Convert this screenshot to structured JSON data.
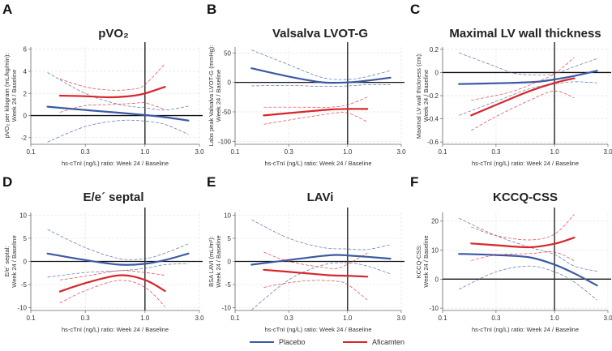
{
  "legend": [
    {
      "name": "Placebo",
      "color": "#3b5aa3"
    },
    {
      "name": "Aficamten",
      "color": "#d8262c"
    }
  ],
  "chart_data": [
    {
      "panel": "A",
      "type": "line",
      "title": "pVO₂",
      "ylabel": [
        "pVO₂ per kilogram (mL/kg/min):",
        "Week 24 / Baseline"
      ],
      "xlabel": "hs-cTnI (ng/L) ratio: Week 24 / Baseline",
      "xscale": "log",
      "xlim": [
        0.1,
        3.0
      ],
      "xticks": [
        "0.1",
        "0.3",
        "1.0",
        "3.0"
      ],
      "ylim": [
        -2.6,
        6.2
      ],
      "yticks": [
        -2,
        0,
        2,
        4,
        6
      ],
      "reference_lines": {
        "x": 1.0,
        "y": 0
      },
      "grid": true,
      "series": [
        {
          "name": "Placebo",
          "estimate": [
            [
              0.14,
              0.8
            ],
            [
              0.3,
              0.5
            ],
            [
              0.6,
              0.25
            ],
            [
              1,
              0.05
            ],
            [
              1.5,
              -0.15
            ],
            [
              2.4,
              -0.45
            ]
          ],
          "upper": [
            [
              0.14,
              3.9
            ],
            [
              0.3,
              2.0
            ],
            [
              0.6,
              1.0
            ],
            [
              1,
              0.7
            ],
            [
              1.5,
              0.5
            ],
            [
              2.4,
              0.85
            ]
          ],
          "lower": [
            [
              0.14,
              -2.4
            ],
            [
              0.3,
              -1.0
            ],
            [
              0.6,
              -0.45
            ],
            [
              1,
              -0.5
            ],
            [
              1.5,
              -0.8
            ],
            [
              2.4,
              -1.7
            ]
          ]
        },
        {
          "name": "Aficamten",
          "estimate": [
            [
              0.18,
              1.8
            ],
            [
              0.3,
              1.75
            ],
            [
              0.5,
              1.65
            ],
            [
              0.8,
              1.8
            ],
            [
              1,
              2.0
            ],
            [
              1.5,
              2.6
            ]
          ],
          "upper": [
            [
              0.18,
              3.3
            ],
            [
              0.3,
              2.6
            ],
            [
              0.5,
              2.3
            ],
            [
              0.8,
              2.4
            ],
            [
              1,
              2.8
            ],
            [
              1.5,
              4.7
            ]
          ],
          "lower": [
            [
              0.18,
              0.3
            ],
            [
              0.3,
              0.9
            ],
            [
              0.5,
              1.0
            ],
            [
              0.8,
              1.1
            ],
            [
              1,
              1.15
            ],
            [
              1.5,
              0.55
            ]
          ]
        }
      ]
    },
    {
      "panel": "B",
      "type": "line",
      "title": "Valsalva LVOT-G",
      "ylabel": [
        "Labs peak Valsalva LVOT-G (mmHg):",
        "Week 24 / Baseline"
      ],
      "xlabel": "hs-cTnI (ng/L) ratio: Week 24 / Baseline",
      "xscale": "log",
      "xlim": [
        0.1,
        3.0
      ],
      "xticks": [
        "0.1",
        "0.3",
        "1.0",
        "3.0"
      ],
      "ylim": [
        -105,
        60
      ],
      "yticks": [
        -100,
        -50,
        0,
        50
      ],
      "reference_lines": {
        "x": 1.0,
        "y": 0
      },
      "grid": true,
      "series": [
        {
          "name": "Placebo",
          "estimate": [
            [
              0.14,
              24
            ],
            [
              0.3,
              10
            ],
            [
              0.6,
              0
            ],
            [
              1,
              0
            ],
            [
              1.5,
              3
            ],
            [
              2.4,
              8
            ]
          ],
          "upper": [
            [
              0.14,
              55
            ],
            [
              0.3,
              30
            ],
            [
              0.6,
              8
            ],
            [
              1,
              5
            ],
            [
              1.5,
              10
            ],
            [
              2.4,
              20
            ]
          ],
          "lower": [
            [
              0.14,
              -6
            ],
            [
              0.3,
              -5
            ],
            [
              0.6,
              -7
            ],
            [
              1,
              -6
            ],
            [
              1.5,
              -4
            ],
            [
              2.4,
              -4
            ]
          ]
        },
        {
          "name": "Aficamten",
          "estimate": [
            [
              0.18,
              -56
            ],
            [
              0.4,
              -50
            ],
            [
              0.7,
              -46
            ],
            [
              1,
              -45
            ],
            [
              1.5,
              -45
            ]
          ],
          "upper": [
            [
              0.18,
              -42
            ],
            [
              0.4,
              -42
            ],
            [
              0.7,
              -42
            ],
            [
              1,
              -38
            ],
            [
              1.5,
              -25
            ]
          ],
          "lower": [
            [
              0.18,
              -71
            ],
            [
              0.4,
              -60
            ],
            [
              0.7,
              -53
            ],
            [
              1,
              -52
            ],
            [
              1.5,
              -67
            ]
          ]
        }
      ]
    },
    {
      "panel": "C",
      "type": "line",
      "title": "Maximal LV wall thickness",
      "ylabel": [
        "Maximal LV wall thickness (cm):",
        "Week 24 / Baseline"
      ],
      "xlabel": "hs-cTnI (ng/L) ratio: Week 24 / Baseline",
      "xscale": "log",
      "xlim": [
        0.1,
        3.0
      ],
      "xticks": [
        "0.1",
        "0.3",
        "1.0",
        "3.0"
      ],
      "ylim": [
        -0.62,
        0.22
      ],
      "yticks": [
        -0.6,
        -0.4,
        -0.2,
        0,
        0.2
      ],
      "reference_lines": {
        "x": 1.0,
        "y": 0
      },
      "grid": true,
      "series": [
        {
          "name": "Placebo",
          "estimate": [
            [
              0.14,
              -0.1
            ],
            [
              0.4,
              -0.09
            ],
            [
              0.7,
              -0.08
            ],
            [
              1,
              -0.06
            ],
            [
              1.5,
              -0.03
            ],
            [
              2.4,
              0.015
            ]
          ],
          "upper": [
            [
              0.14,
              0.17
            ],
            [
              0.3,
              0.05
            ],
            [
              0.45,
              -0.01
            ],
            [
              0.7,
              -0.02
            ],
            [
              1,
              -0.01
            ],
            [
              1.5,
              0.05
            ],
            [
              2.4,
              0.12
            ]
          ],
          "lower": [
            [
              0.14,
              -0.37
            ],
            [
              0.3,
              -0.25
            ],
            [
              0.6,
              -0.14
            ],
            [
              1,
              -0.1
            ],
            [
              1.5,
              -0.08
            ],
            [
              2.4,
              -0.09
            ]
          ]
        },
        {
          "name": "Aficamten",
          "estimate": [
            [
              0.18,
              -0.37
            ],
            [
              0.3,
              -0.28
            ],
            [
              0.6,
              -0.16
            ],
            [
              1,
              -0.09
            ],
            [
              1.5,
              -0.05
            ]
          ],
          "upper": [
            [
              0.18,
              -0.24
            ],
            [
              0.4,
              -0.17
            ],
            [
              0.7,
              -0.08
            ],
            [
              1,
              -0.01
            ],
            [
              1.5,
              0.13
            ]
          ],
          "lower": [
            [
              0.18,
              -0.5
            ],
            [
              0.3,
              -0.38
            ],
            [
              0.6,
              -0.24
            ],
            [
              1,
              -0.16
            ],
            [
              1.5,
              -0.22
            ]
          ]
        }
      ]
    },
    {
      "panel": "D",
      "type": "line",
      "title": "E/e´ septal",
      "ylabel": [
        "E/e´ septal:",
        "Week 24 / Baseline"
      ],
      "xlabel": "hs-cTnI (ng/L) ratio: Week 24 / Baseline",
      "xscale": "log",
      "xlim": [
        0.1,
        3.0
      ],
      "xticks": [
        "0.1",
        "0.3",
        "1.0",
        "3.0"
      ],
      "ylim": [
        -10.6,
        10.6
      ],
      "yticks": [
        -10,
        -5,
        0,
        5,
        10
      ],
      "reference_lines": {
        "x": 1.0,
        "y": 0
      },
      "grid": true,
      "series": [
        {
          "name": "Placebo",
          "estimate": [
            [
              0.14,
              1.7
            ],
            [
              0.3,
              0.3
            ],
            [
              0.6,
              -0.7
            ],
            [
              1,
              -0.5
            ],
            [
              1.5,
              0.3
            ],
            [
              2.4,
              1.7
            ]
          ],
          "upper": [
            [
              0.14,
              6.9
            ],
            [
              0.3,
              3
            ],
            [
              0.6,
              0.6
            ],
            [
              1,
              0.6
            ],
            [
              1.5,
              1.8
            ],
            [
              2.4,
              3.8
            ]
          ],
          "lower": [
            [
              0.14,
              -3.4
            ],
            [
              0.3,
              -2.4
            ],
            [
              0.6,
              -2
            ],
            [
              1,
              -1.5
            ],
            [
              1.5,
              -0.7
            ],
            [
              2.4,
              -0.5
            ]
          ]
        },
        {
          "name": "Aficamten",
          "estimate": [
            [
              0.18,
              -6.5
            ],
            [
              0.3,
              -4.7
            ],
            [
              0.6,
              -3
            ],
            [
              1,
              -4
            ],
            [
              1.5,
              -6.4
            ]
          ],
          "upper": [
            [
              0.18,
              -4
            ],
            [
              0.3,
              -3.2
            ],
            [
              0.6,
              -2
            ],
            [
              1,
              -2.4
            ],
            [
              1.5,
              -3
            ]
          ],
          "lower": [
            [
              0.18,
              -9
            ],
            [
              0.3,
              -6.3
            ],
            [
              0.6,
              -4.1
            ],
            [
              1,
              -5.6
            ],
            [
              1.5,
              -9.8
            ]
          ]
        }
      ]
    },
    {
      "panel": "E",
      "type": "line",
      "title": "LAVi",
      "ylabel": [
        "BSA LAVI (mL/m²):",
        "Week 24 / Baseline"
      ],
      "xlabel": "hs-cTnI (ng/L) ratio: Week 24 / Baseline",
      "xscale": "log",
      "xlim": [
        0.1,
        3.0
      ],
      "xticks": [
        "0.1",
        "0.3",
        "1.0",
        "3.0"
      ],
      "ylim": [
        -10.6,
        10.6
      ],
      "yticks": [
        -10,
        -5,
        0,
        5,
        10
      ],
      "reference_lines": {
        "x": 1.0,
        "y": 0
      },
      "grid": true,
      "series": [
        {
          "name": "Placebo",
          "estimate": [
            [
              0.14,
              -0.7
            ],
            [
              0.3,
              0.3
            ],
            [
              0.6,
              1.2
            ],
            [
              0.8,
              1.4
            ],
            [
              1,
              1.3
            ],
            [
              1.5,
              1
            ],
            [
              2.4,
              0.6
            ]
          ],
          "upper": [
            [
              0.14,
              9
            ],
            [
              0.3,
              5
            ],
            [
              0.6,
              3
            ],
            [
              1,
              2.7
            ],
            [
              1.5,
              2.6
            ],
            [
              2.4,
              3.6
            ]
          ],
          "lower": [
            [
              0.14,
              -10.5
            ],
            [
              0.3,
              -4
            ],
            [
              0.6,
              -0.8
            ],
            [
              1,
              -0.3
            ],
            [
              1.5,
              -1
            ],
            [
              2.4,
              -2.7
            ]
          ]
        },
        {
          "name": "Aficamten",
          "estimate": [
            [
              0.18,
              -1.8
            ],
            [
              0.4,
              -2.5
            ],
            [
              0.7,
              -3
            ],
            [
              1,
              -3.1
            ],
            [
              1.5,
              -3.3
            ]
          ],
          "upper": [
            [
              0.18,
              2
            ],
            [
              0.3,
              0
            ],
            [
              0.6,
              -1.3
            ],
            [
              0.8,
              -1.5
            ],
            [
              1,
              -0.6
            ],
            [
              1.5,
              1.8
            ]
          ],
          "lower": [
            [
              0.18,
              -5.6
            ],
            [
              0.3,
              -4.6
            ],
            [
              0.5,
              -4.1
            ],
            [
              0.8,
              -4.3
            ],
            [
              1,
              -5
            ],
            [
              1.5,
              -8.3
            ]
          ]
        }
      ]
    },
    {
      "panel": "F",
      "type": "line",
      "title": "KCCQ-CSS",
      "ylabel": [
        "KCCQ-CSS:",
        "Week 24 / Baseline"
      ],
      "xlabel": "hs-cTnI (ng/L) ratio: Week 24 / Baseline",
      "xscale": "log",
      "xlim": [
        0.1,
        3.0
      ],
      "xticks": [
        "0.1",
        "0.3",
        "1.0",
        "3.0"
      ],
      "ylim": [
        -10.8,
        23
      ],
      "yticks": [
        -10,
        0,
        10,
        20
      ],
      "reference_lines": {
        "x": 1.0,
        "y": 0
      },
      "grid": true,
      "series": [
        {
          "name": "Placebo",
          "estimate": [
            [
              0.14,
              8.7
            ],
            [
              0.3,
              8.3
            ],
            [
              0.6,
              7.5
            ],
            [
              1,
              5
            ],
            [
              1.5,
              2
            ],
            [
              2.4,
              -2.2
            ]
          ],
          "upper": [
            [
              0.14,
              21
            ],
            [
              0.3,
              15
            ],
            [
              0.6,
              11
            ],
            [
              1,
              8.5
            ],
            [
              1.5,
              4.5
            ],
            [
              2.4,
              2.7
            ]
          ],
          "lower": [
            [
              0.14,
              -3.5
            ],
            [
              0.3,
              2.5
            ],
            [
              0.6,
              4.5
            ],
            [
              1,
              2.5
            ],
            [
              1.5,
              -1
            ],
            [
              2.4,
              -7.2
            ]
          ]
        },
        {
          "name": "Aficamten",
          "estimate": [
            [
              0.18,
              12.3
            ],
            [
              0.3,
              11.7
            ],
            [
              0.6,
              11
            ],
            [
              1,
              12.2
            ],
            [
              1.5,
              14.3
            ]
          ],
          "upper": [
            [
              0.18,
              18
            ],
            [
              0.3,
              15
            ],
            [
              0.6,
              13.5
            ],
            [
              1,
              15.5
            ],
            [
              1.5,
              22.3
            ]
          ],
          "lower": [
            [
              0.18,
              6.4
            ],
            [
              0.3,
              8.3
            ],
            [
              0.6,
              8.8
            ],
            [
              1,
              9.3
            ],
            [
              1.5,
              6.3
            ]
          ]
        }
      ]
    }
  ]
}
